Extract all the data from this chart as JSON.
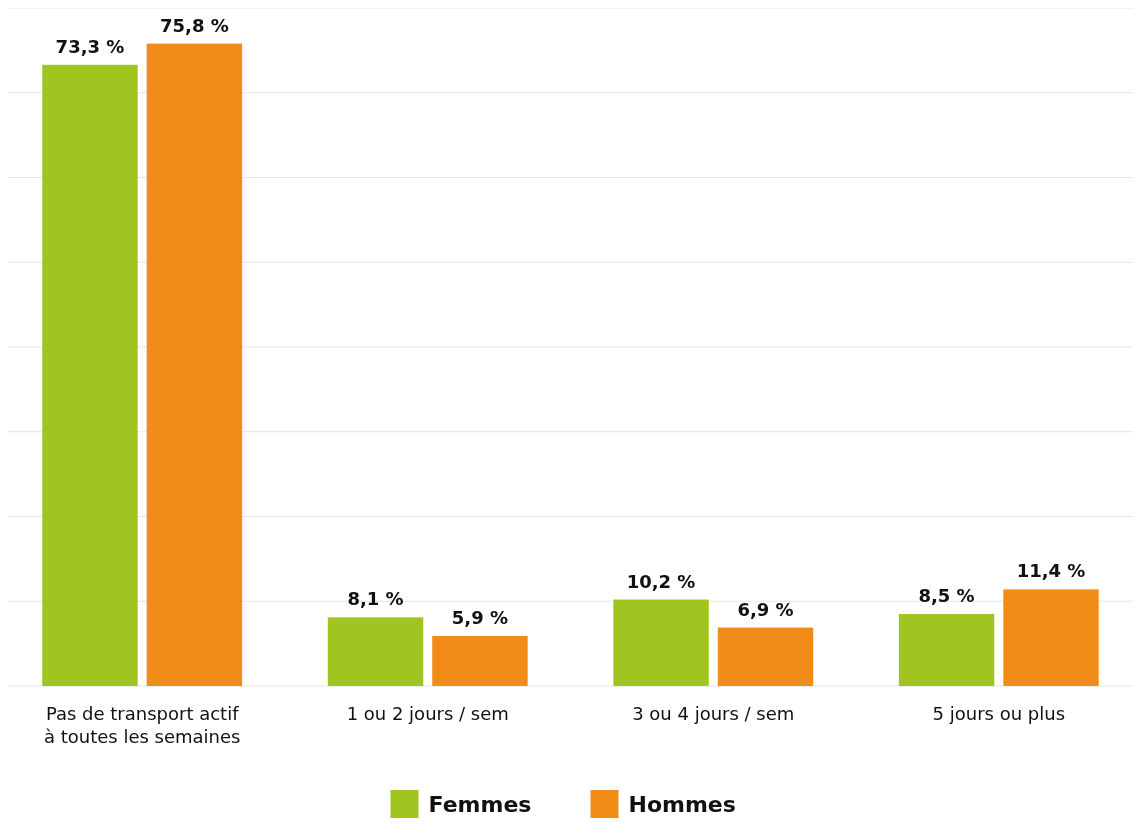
{
  "chart_data": {
    "type": "bar",
    "categories": [
      "Pas de transport actif à toutes les semaines",
      "1 ou 2 jours / sem",
      "3 ou 4 jours / sem",
      "5 jours ou plus"
    ],
    "series": [
      {
        "name": "Femmes",
        "color": "#a0c520",
        "values": [
          73.3,
          8.1,
          10.2,
          8.5
        ],
        "value_labels": [
          "73,3 %",
          "8,1 %",
          "10,2 %",
          "8,5 %"
        ]
      },
      {
        "name": "Hommes",
        "color": "#f28c18",
        "values": [
          75.8,
          5.9,
          6.9,
          11.4
        ],
        "value_labels": [
          "75,8 %",
          "5,9 %",
          "6,9 %",
          "11,4 %"
        ]
      }
    ],
    "ylim": [
      0,
      80
    ],
    "yticks": [
      {
        "value": 0,
        "label": null
      },
      {
        "value": 10,
        "label": null
      },
      {
        "value": 20,
        "label": null
      },
      {
        "value": 30,
        "label": null
      },
      {
        "value": 40,
        "label": null
      },
      {
        "value": 50,
        "label": null
      },
      {
        "value": 60,
        "label": null
      },
      {
        "value": 70,
        "label": null
      },
      {
        "value": 80,
        "label": null
      }
    ],
    "tick_labels": "x",
    "grid": "y",
    "legend": "bottom"
  }
}
